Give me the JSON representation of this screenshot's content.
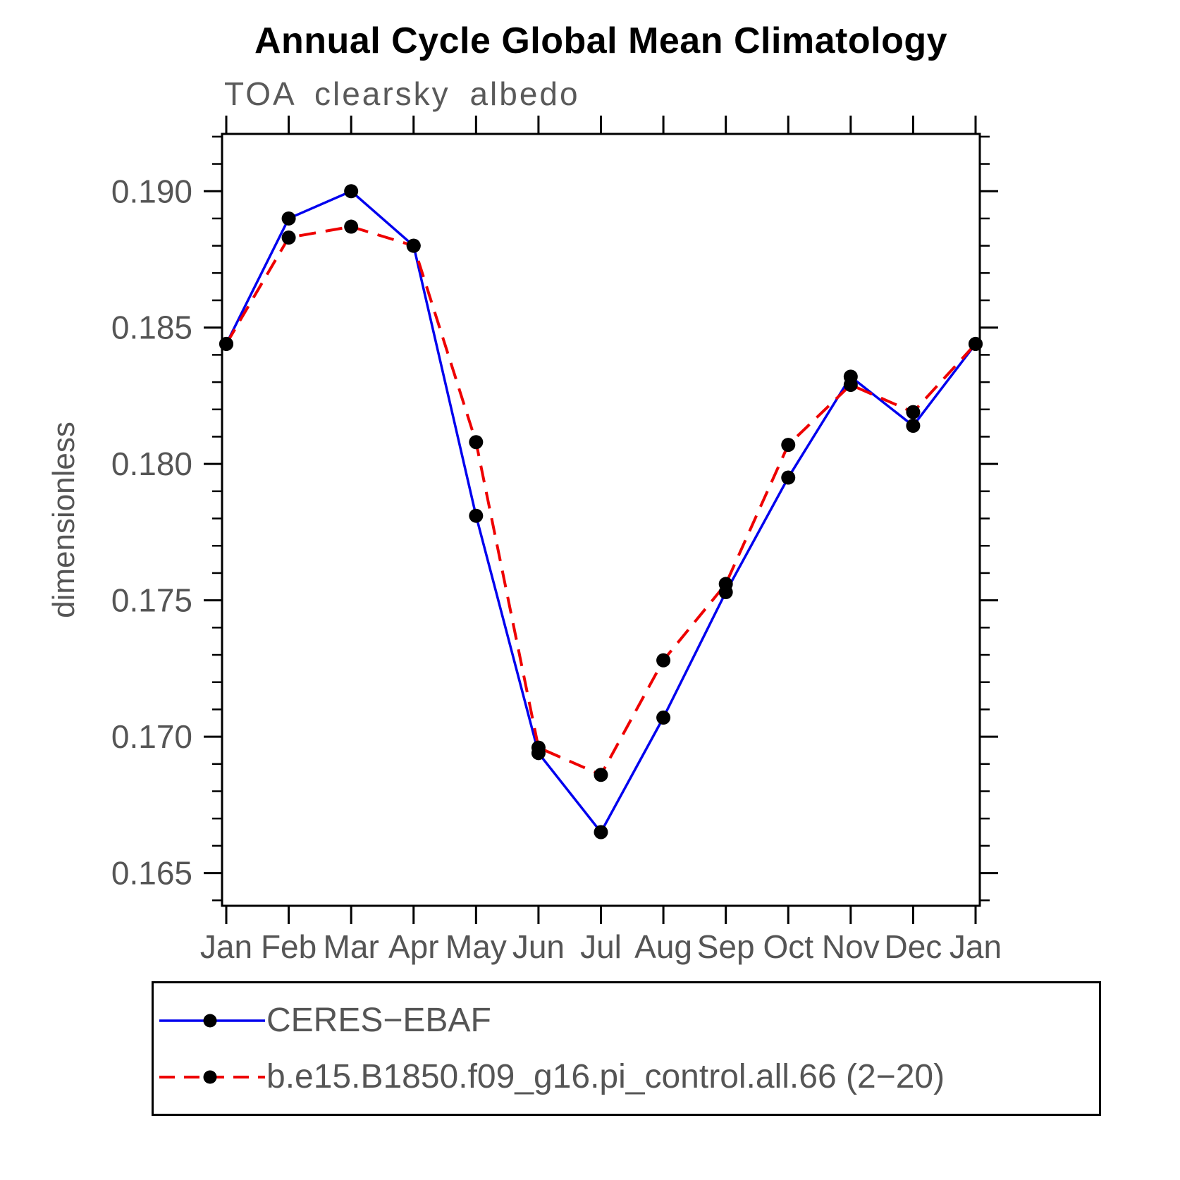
{
  "page": {
    "title": "Annual Cycle Global Mean Climatology",
    "subtitle": "TOA clearsky albedo"
  },
  "chart_data": {
    "type": "line",
    "title": "Annual Cycle Global Mean Climatology",
    "subtitle": "TOA clearsky albedo",
    "xlabel": "",
    "ylabel": "dimensionless",
    "categories": [
      "Jan",
      "Feb",
      "Mar",
      "Apr",
      "May",
      "Jun",
      "Jul",
      "Aug",
      "Sep",
      "Oct",
      "Nov",
      "Dec",
      "Jan"
    ],
    "ylim": [
      0.1638,
      0.1921
    ],
    "yticks": [
      0.165,
      0.17,
      0.175,
      0.18,
      0.185,
      0.19
    ],
    "yminor_step": 0.001,
    "grid": false,
    "legend_position": "bottom",
    "axis_color": "#000000",
    "tick_label_color": "#555555",
    "series": [
      {
        "name": "CERES−EBAF",
        "color": "#0000ee",
        "style": "solid",
        "marker": "circle",
        "marker_color": "#000000",
        "values": [
          0.1844,
          0.189,
          0.19,
          0.188,
          0.1781,
          0.1694,
          0.1665,
          0.1707,
          0.1753,
          0.1795,
          0.1832,
          0.1814,
          0.1844
        ]
      },
      {
        "name": "b.e15.B1850.f09_g16.pi_control.all.66 (2−20)",
        "color": "#ee0000",
        "style": "dashed",
        "marker": "circle",
        "marker_color": "#000000",
        "values": [
          0.1844,
          0.1883,
          0.1887,
          0.188,
          0.1808,
          0.1696,
          0.1686,
          0.1728,
          0.1756,
          0.1807,
          0.1829,
          0.1819,
          0.1844
        ]
      }
    ]
  }
}
